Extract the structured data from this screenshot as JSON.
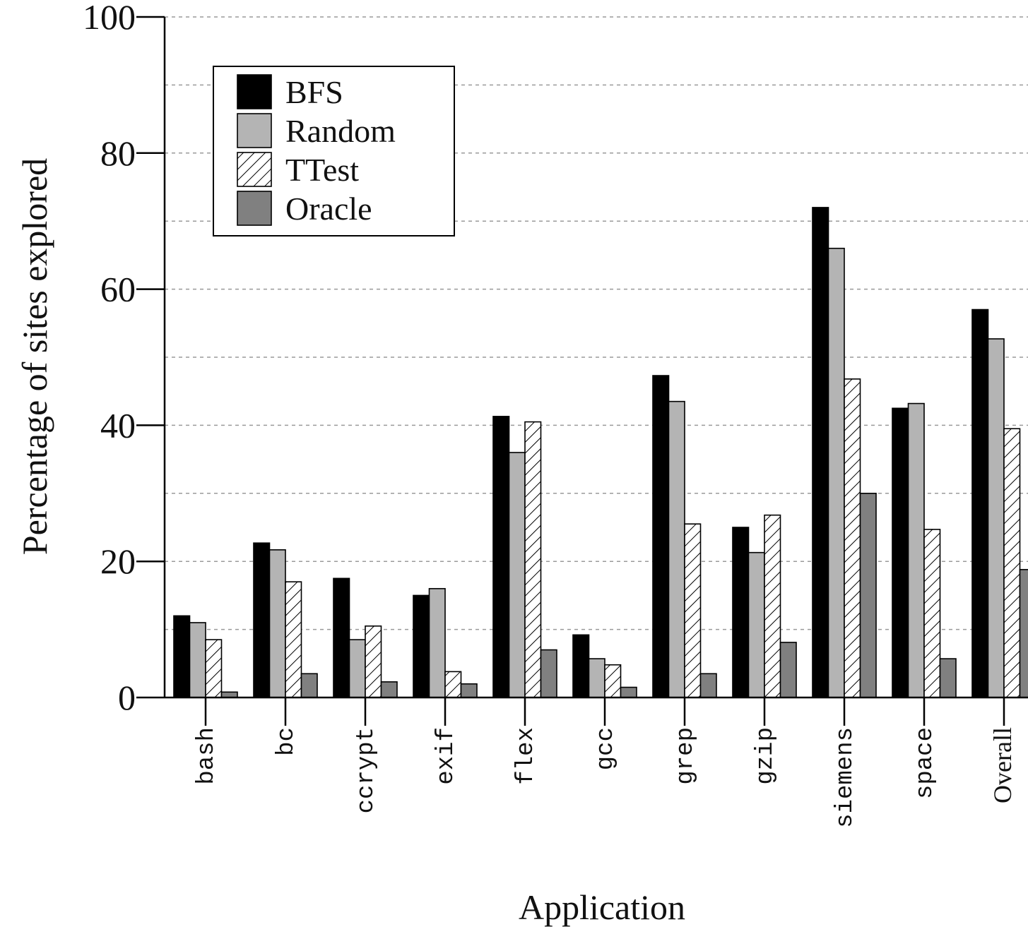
{
  "chart_data": {
    "type": "bar",
    "title": "",
    "xlabel": "Application",
    "ylabel": "Percentage of sites explored",
    "ylim": [
      0,
      100
    ],
    "yticks": [
      0,
      20,
      40,
      60,
      80,
      100
    ],
    "grid": true,
    "legend_position": "top-left",
    "categories": [
      "bash",
      "bc",
      "ccrypt",
      "exif",
      "flex",
      "gcc",
      "grep",
      "gzip",
      "siemens",
      "space",
      "Overall"
    ],
    "series": [
      {
        "name": "BFS",
        "color": "#000000",
        "pattern": "solid",
        "values": [
          12,
          22.7,
          17.5,
          15,
          41.3,
          9.2,
          47.3,
          25,
          72,
          42.5,
          57
        ]
      },
      {
        "name": "Random",
        "color": "#b4b4b4",
        "pattern": "solid",
        "values": [
          11,
          21.7,
          8.5,
          16,
          36,
          5.7,
          43.5,
          21.3,
          66,
          43.2,
          52.7
        ]
      },
      {
        "name": "TTest",
        "color": "#ffffff",
        "pattern": "hatch",
        "values": [
          8.5,
          17,
          10.5,
          3.8,
          40.5,
          4.8,
          25.5,
          26.8,
          46.8,
          24.7,
          39.5
        ]
      },
      {
        "name": "Oracle",
        "color": "#808080",
        "pattern": "solid",
        "values": [
          0.8,
          3.5,
          2.3,
          2,
          7,
          1.5,
          3.5,
          8.1,
          30,
          5.7,
          18.8
        ]
      }
    ]
  }
}
